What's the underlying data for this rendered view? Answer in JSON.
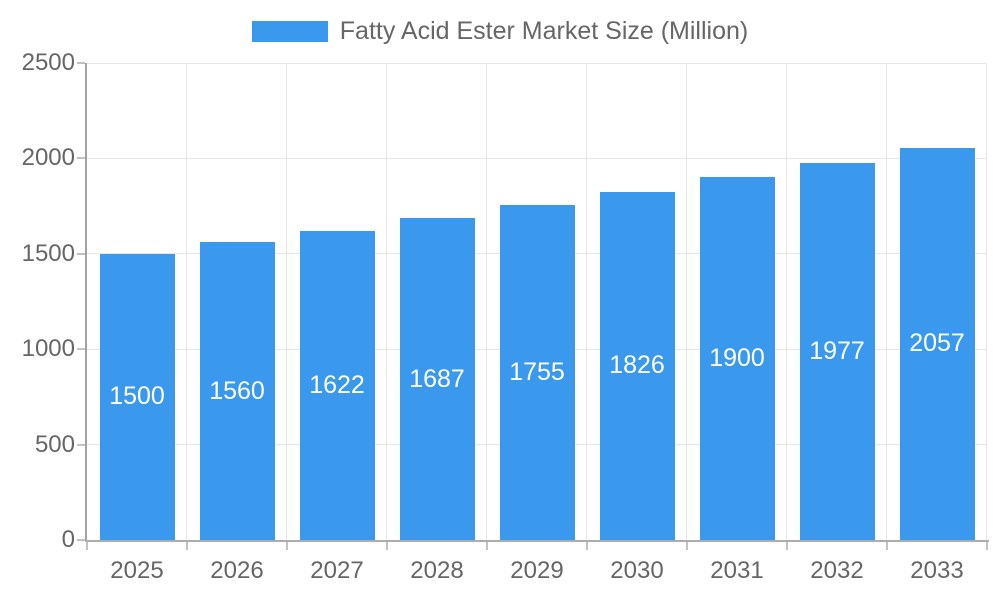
{
  "legend": {
    "label": "Fatty Acid Ester Market Size (Million)"
  },
  "chart_data": {
    "type": "bar",
    "title": "Fatty Acid Ester Market Size (Million)",
    "series_name": "Fatty Acid Ester Market Size (Million)",
    "categories": [
      "2025",
      "2026",
      "2027",
      "2028",
      "2029",
      "2030",
      "2031",
      "2032",
      "2033"
    ],
    "values": [
      1500,
      1560,
      1622,
      1687,
      1755,
      1826,
      1900,
      1977,
      2057
    ],
    "xlabel": "",
    "ylabel": "",
    "ylim": [
      0,
      2500
    ],
    "yticks": [
      0,
      500,
      1000,
      1500,
      2000,
      2500
    ],
    "grid": true,
    "legend_position": "top",
    "value_labels": "centered-inside-bars"
  },
  "colors": {
    "bar": "#3A99EC",
    "grid": "#e6e6e6",
    "axis": "#a8a8a8",
    "tick_mark": "#c2c2c2",
    "tick_text": "#666666",
    "legend_text": "#666666",
    "value_label_text": "#ffffff",
    "background": "#ffffff"
  }
}
